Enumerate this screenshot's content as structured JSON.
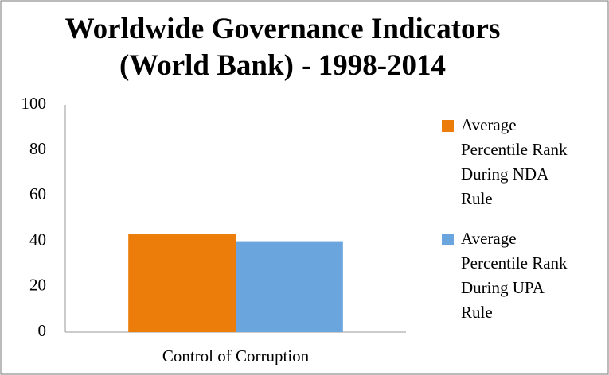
{
  "chart_data": {
    "type": "bar",
    "title": "Worldwide Governance Indicators (World Bank) - 1998-2014",
    "categories": [
      "Control of Corruption"
    ],
    "series": [
      {
        "name": "Average Percentile Rank During NDA Rule",
        "color": "#ed7d0b",
        "values": [
          43
        ]
      },
      {
        "name": "Average Percentile Rank During UPA Rule",
        "color": "#6aa5dd",
        "values": [
          40
        ]
      }
    ],
    "ylim": [
      0,
      100
    ],
    "yticks": [
      0,
      20,
      40,
      60,
      80,
      100
    ],
    "grid": false,
    "legend": "right"
  }
}
